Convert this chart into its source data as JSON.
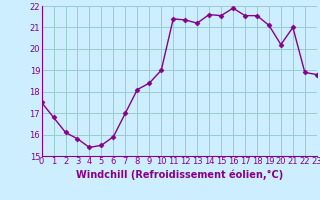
{
  "x": [
    0,
    1,
    2,
    3,
    4,
    5,
    6,
    7,
    8,
    9,
    10,
    11,
    12,
    13,
    14,
    15,
    16,
    17,
    18,
    19,
    20,
    21,
    22,
    23
  ],
  "y": [
    17.5,
    16.8,
    16.1,
    15.8,
    15.4,
    15.5,
    15.9,
    17.0,
    18.1,
    18.4,
    19.0,
    21.4,
    21.35,
    21.2,
    21.6,
    21.55,
    21.9,
    21.55,
    21.55,
    21.1,
    20.2,
    21.0,
    18.9,
    18.8
  ],
  "line_color": "#880088",
  "marker": "D",
  "marker_size": 2.5,
  "bg_color": "#cceeff",
  "grid_color": "#99cccc",
  "xlabel": "Windchill (Refroidissement éolien,°C)",
  "xlabel_fontsize": 7,
  "tick_color": "#880088",
  "tick_fontsize": 6,
  "ylim": [
    15,
    22
  ],
  "xlim": [
    0,
    23
  ],
  "yticks": [
    15,
    16,
    17,
    18,
    19,
    20,
    21,
    22
  ],
  "xticks": [
    0,
    1,
    2,
    3,
    4,
    5,
    6,
    7,
    8,
    9,
    10,
    11,
    12,
    13,
    14,
    15,
    16,
    17,
    18,
    19,
    20,
    21,
    22,
    23
  ]
}
